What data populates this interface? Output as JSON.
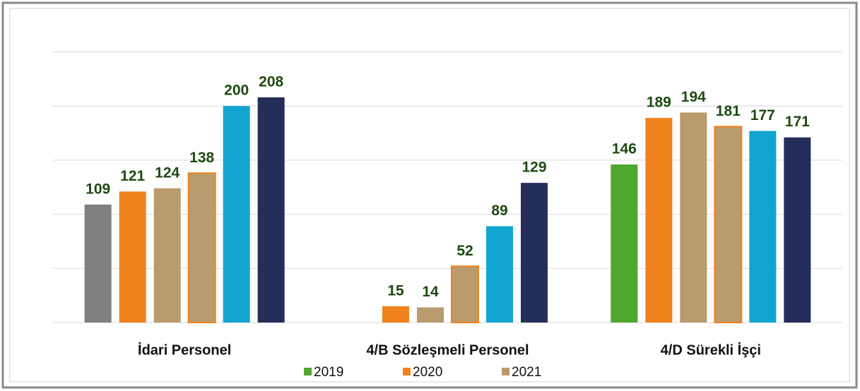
{
  "chart_data": {
    "type": "bar",
    "categories": [
      "İdari Personel",
      "4/B Sözleşmeli Personel",
      "4/D Sürekli İşçi"
    ],
    "series": [
      {
        "name": "2019",
        "color": "#4ea72e",
        "colors": [
          "#808080",
          null,
          "#4ea72e"
        ],
        "values": [
          109,
          null,
          146
        ]
      },
      {
        "name": "2020",
        "color": "#f0821e",
        "values": [
          121,
          15,
          189
        ]
      },
      {
        "name": "2021",
        "color": "#b99b6e",
        "values": [
          124,
          14,
          194
        ]
      },
      {
        "color": "#b99b6e",
        "edgecolor": "#f0821e",
        "values": [
          138,
          52,
          181
        ]
      },
      {
        "color": "#12a5d1",
        "values": [
          200,
          89,
          177
        ]
      },
      {
        "color": "#252d5a",
        "values": [
          208,
          129,
          171
        ]
      }
    ],
    "ylim": [
      0,
      250
    ],
    "yticks": [
      0,
      50,
      100,
      150,
      200,
      250
    ],
    "grid": true
  }
}
